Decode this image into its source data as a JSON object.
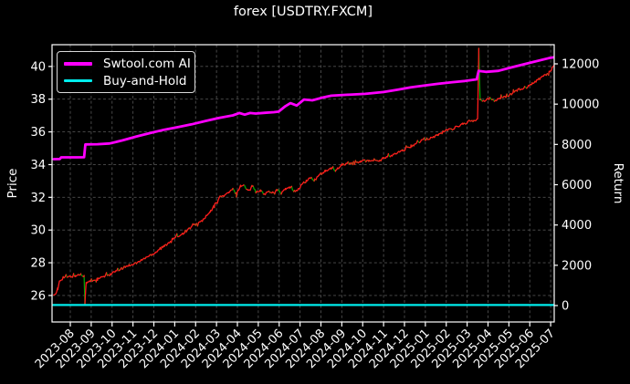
{
  "chart": {
    "background": "#000000",
    "text_color": "#ffffff",
    "grid_color": "#4f4f4f",
    "spine_color": "#ffffff"
  },
  "chart_data": {
    "type": "line",
    "title": "forex [USDTRY.FXCM]",
    "xlabel": "",
    "ylabel_left": "Price",
    "ylabel_right": "Return",
    "grid": true,
    "legend_position": "upper left",
    "x_tick_labels": [
      "2023-08",
      "2023-09",
      "2023-10",
      "2023-11",
      "2023-12",
      "2024-01",
      "2024-02",
      "2024-03",
      "2024-04",
      "2024-05",
      "2024-06",
      "2024-07",
      "2024-08",
      "2024-09",
      "2024-10",
      "2024-11",
      "2024-12",
      "2025-01",
      "2025-02",
      "2025-03",
      "2025-04",
      "2025-05",
      "2025-06",
      "2025-07"
    ],
    "x_domain_months": [
      -0.875,
      23.17
    ],
    "left_ylim": [
      24.38,
      41.33
    ],
    "left_yticks": [
      26,
      28,
      30,
      32,
      34,
      36,
      38,
      40
    ],
    "right_ylim": [
      -815,
      12951
    ],
    "right_yticks": [
      0,
      2000,
      4000,
      6000,
      8000,
      10000,
      12000
    ],
    "series": [
      {
        "name": "price",
        "in_legend": false,
        "axis": "left",
        "style": "updown",
        "color_up": "#ff1c1c",
        "color_down": "#00a400",
        "width": 1.3,
        "jitter": 0.07,
        "points": [
          [
            -0.79,
            26.1
          ],
          [
            -0.7,
            26.05
          ],
          [
            -0.6,
            26.35
          ],
          [
            -0.52,
            26.9
          ],
          [
            -0.3,
            27.1
          ],
          [
            0.0,
            27.15
          ],
          [
            0.25,
            27.2
          ],
          [
            0.5,
            27.3
          ],
          [
            0.66,
            27.2
          ],
          [
            0.7,
            25.55
          ],
          [
            0.76,
            26.75
          ],
          [
            0.9,
            26.85
          ],
          [
            1.3,
            27.0
          ],
          [
            1.9,
            27.3
          ],
          [
            2.3,
            27.55
          ],
          [
            2.8,
            27.85
          ],
          [
            3.2,
            28.0
          ],
          [
            3.6,
            28.3
          ],
          [
            4.1,
            28.65
          ],
          [
            4.3,
            28.9
          ],
          [
            4.5,
            29.0
          ],
          [
            4.9,
            29.45
          ],
          [
            5.4,
            29.8
          ],
          [
            5.8,
            30.2
          ],
          [
            6.3,
            30.55
          ],
          [
            6.7,
            31.1
          ],
          [
            6.9,
            31.5
          ],
          [
            7.13,
            32.0
          ],
          [
            7.35,
            32.1
          ],
          [
            7.6,
            32.3
          ],
          [
            7.78,
            32.5
          ],
          [
            7.95,
            32.2
          ],
          [
            8.15,
            32.7
          ],
          [
            8.3,
            32.75
          ],
          [
            8.5,
            32.4
          ],
          [
            8.7,
            32.75
          ],
          [
            8.9,
            32.3
          ],
          [
            9.1,
            32.4
          ],
          [
            9.3,
            32.2
          ],
          [
            9.5,
            32.35
          ],
          [
            9.7,
            32.3
          ],
          [
            9.9,
            32.45
          ],
          [
            10.1,
            32.25
          ],
          [
            10.3,
            32.5
          ],
          [
            10.5,
            32.6
          ],
          [
            10.7,
            32.4
          ],
          [
            10.9,
            32.45
          ],
          [
            11.1,
            32.8
          ],
          [
            11.3,
            33.0
          ],
          [
            11.5,
            33.2
          ],
          [
            11.7,
            33.0
          ],
          [
            11.9,
            33.35
          ],
          [
            12.2,
            33.6
          ],
          [
            12.5,
            33.75
          ],
          [
            12.7,
            33.65
          ],
          [
            13.0,
            34.0
          ],
          [
            13.3,
            34.1
          ],
          [
            13.6,
            34.05
          ],
          [
            13.9,
            34.2
          ],
          [
            14.3,
            34.25
          ],
          [
            14.6,
            34.3
          ],
          [
            14.8,
            34.2
          ],
          [
            15.0,
            34.4
          ],
          [
            15.4,
            34.55
          ],
          [
            15.9,
            34.85
          ],
          [
            16.3,
            35.1
          ],
          [
            16.8,
            35.45
          ],
          [
            17.3,
            35.65
          ],
          [
            17.6,
            35.8
          ],
          [
            18.0,
            36.1
          ],
          [
            18.4,
            36.25
          ],
          [
            18.8,
            36.5
          ],
          [
            19.3,
            36.65
          ],
          [
            19.5,
            36.8
          ],
          [
            19.56,
            41.1
          ],
          [
            19.62,
            38.0
          ],
          [
            19.8,
            37.9
          ],
          [
            20.1,
            38.05
          ],
          [
            20.3,
            37.9
          ],
          [
            20.6,
            38.1
          ],
          [
            20.9,
            38.15
          ],
          [
            21.2,
            38.45
          ],
          [
            21.5,
            38.6
          ],
          [
            21.8,
            38.7
          ],
          [
            22.1,
            38.95
          ],
          [
            22.4,
            39.2
          ],
          [
            22.7,
            39.45
          ],
          [
            22.9,
            39.6
          ],
          [
            23.05,
            39.85
          ],
          [
            23.17,
            40.1
          ]
        ]
      },
      {
        "name": "Swtool.com AI",
        "in_legend": true,
        "axis": "right",
        "style": "line",
        "color": "#ff00ff",
        "width": 2.8,
        "points": [
          [
            -0.79,
            7270
          ],
          [
            -0.5,
            7275
          ],
          [
            -0.44,
            7360
          ],
          [
            0.3,
            7360
          ],
          [
            0.66,
            7365
          ],
          [
            0.72,
            8000
          ],
          [
            1.3,
            8010
          ],
          [
            1.88,
            8045
          ],
          [
            2.5,
            8200
          ],
          [
            3.19,
            8400
          ],
          [
            3.8,
            8560
          ],
          [
            4.5,
            8730
          ],
          [
            5.2,
            8870
          ],
          [
            5.81,
            9000
          ],
          [
            6.5,
            9170
          ],
          [
            7.13,
            9320
          ],
          [
            7.78,
            9440
          ],
          [
            8.09,
            9560
          ],
          [
            8.35,
            9480
          ],
          [
            8.61,
            9560
          ],
          [
            8.88,
            9530
          ],
          [
            9.31,
            9570
          ],
          [
            9.75,
            9600
          ],
          [
            9.97,
            9625
          ],
          [
            10.3,
            9900
          ],
          [
            10.54,
            10050
          ],
          [
            10.84,
            9930
          ],
          [
            11.19,
            10230
          ],
          [
            11.59,
            10190
          ],
          [
            12.02,
            10310
          ],
          [
            12.5,
            10420
          ],
          [
            13.25,
            10465
          ],
          [
            14.12,
            10510
          ],
          [
            15.0,
            10600
          ],
          [
            15.7,
            10720
          ],
          [
            16.3,
            10830
          ],
          [
            17.0,
            10930
          ],
          [
            17.6,
            11010
          ],
          [
            18.3,
            11090
          ],
          [
            18.9,
            11150
          ],
          [
            19.46,
            11230
          ],
          [
            19.55,
            11650
          ],
          [
            19.9,
            11600
          ],
          [
            20.5,
            11650
          ],
          [
            21.1,
            11820
          ],
          [
            22.0,
            12050
          ],
          [
            22.9,
            12280
          ],
          [
            23.17,
            12330
          ]
        ]
      },
      {
        "name": "Buy-and-Hold",
        "in_legend": true,
        "axis": "right",
        "style": "line",
        "color": "#00eded",
        "width": 2.3,
        "points": [
          [
            -0.82,
            25
          ],
          [
            23.17,
            25
          ]
        ]
      }
    ]
  }
}
